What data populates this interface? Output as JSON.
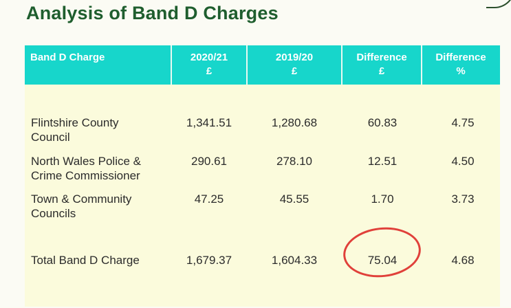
{
  "title": "Analysis of Band D Charges",
  "table": {
    "headers": [
      {
        "line1": "Band D Charge",
        "line2": ""
      },
      {
        "line1": "2020/21",
        "line2": "£"
      },
      {
        "line1": "2019/20",
        "line2": "£"
      },
      {
        "line1": "Difference",
        "line2": "£"
      },
      {
        "line1": "Difference",
        "line2": "%"
      }
    ],
    "rows": [
      {
        "name_line1": "Flintshire County",
        "name_line2": "Council",
        "y2021": "1,341.51",
        "y1920": "1,280.68",
        "diff": "60.83",
        "pct": "4.75"
      },
      {
        "name_line1": "North Wales Police &",
        "name_line2": "Crime Commissioner",
        "y2021": "290.61",
        "y1920": "278.10",
        "diff": "12.51",
        "pct": "4.50"
      },
      {
        "name_line1": "Town & Community",
        "name_line2": "Councils",
        "y2021": "47.25",
        "y1920": "45.55",
        "diff": "1.70",
        "pct": "3.73"
      }
    ],
    "total": {
      "name": "Total Band D Charge",
      "y2021": "1,679.37",
      "y1920": "1,604.33",
      "diff": "75.04",
      "pct": "4.68"
    }
  },
  "colors": {
    "header_bg": "#17d6cb",
    "title": "#1f5e2e",
    "highlight": "#e0403a",
    "table_bg": "#fbfbdc"
  }
}
